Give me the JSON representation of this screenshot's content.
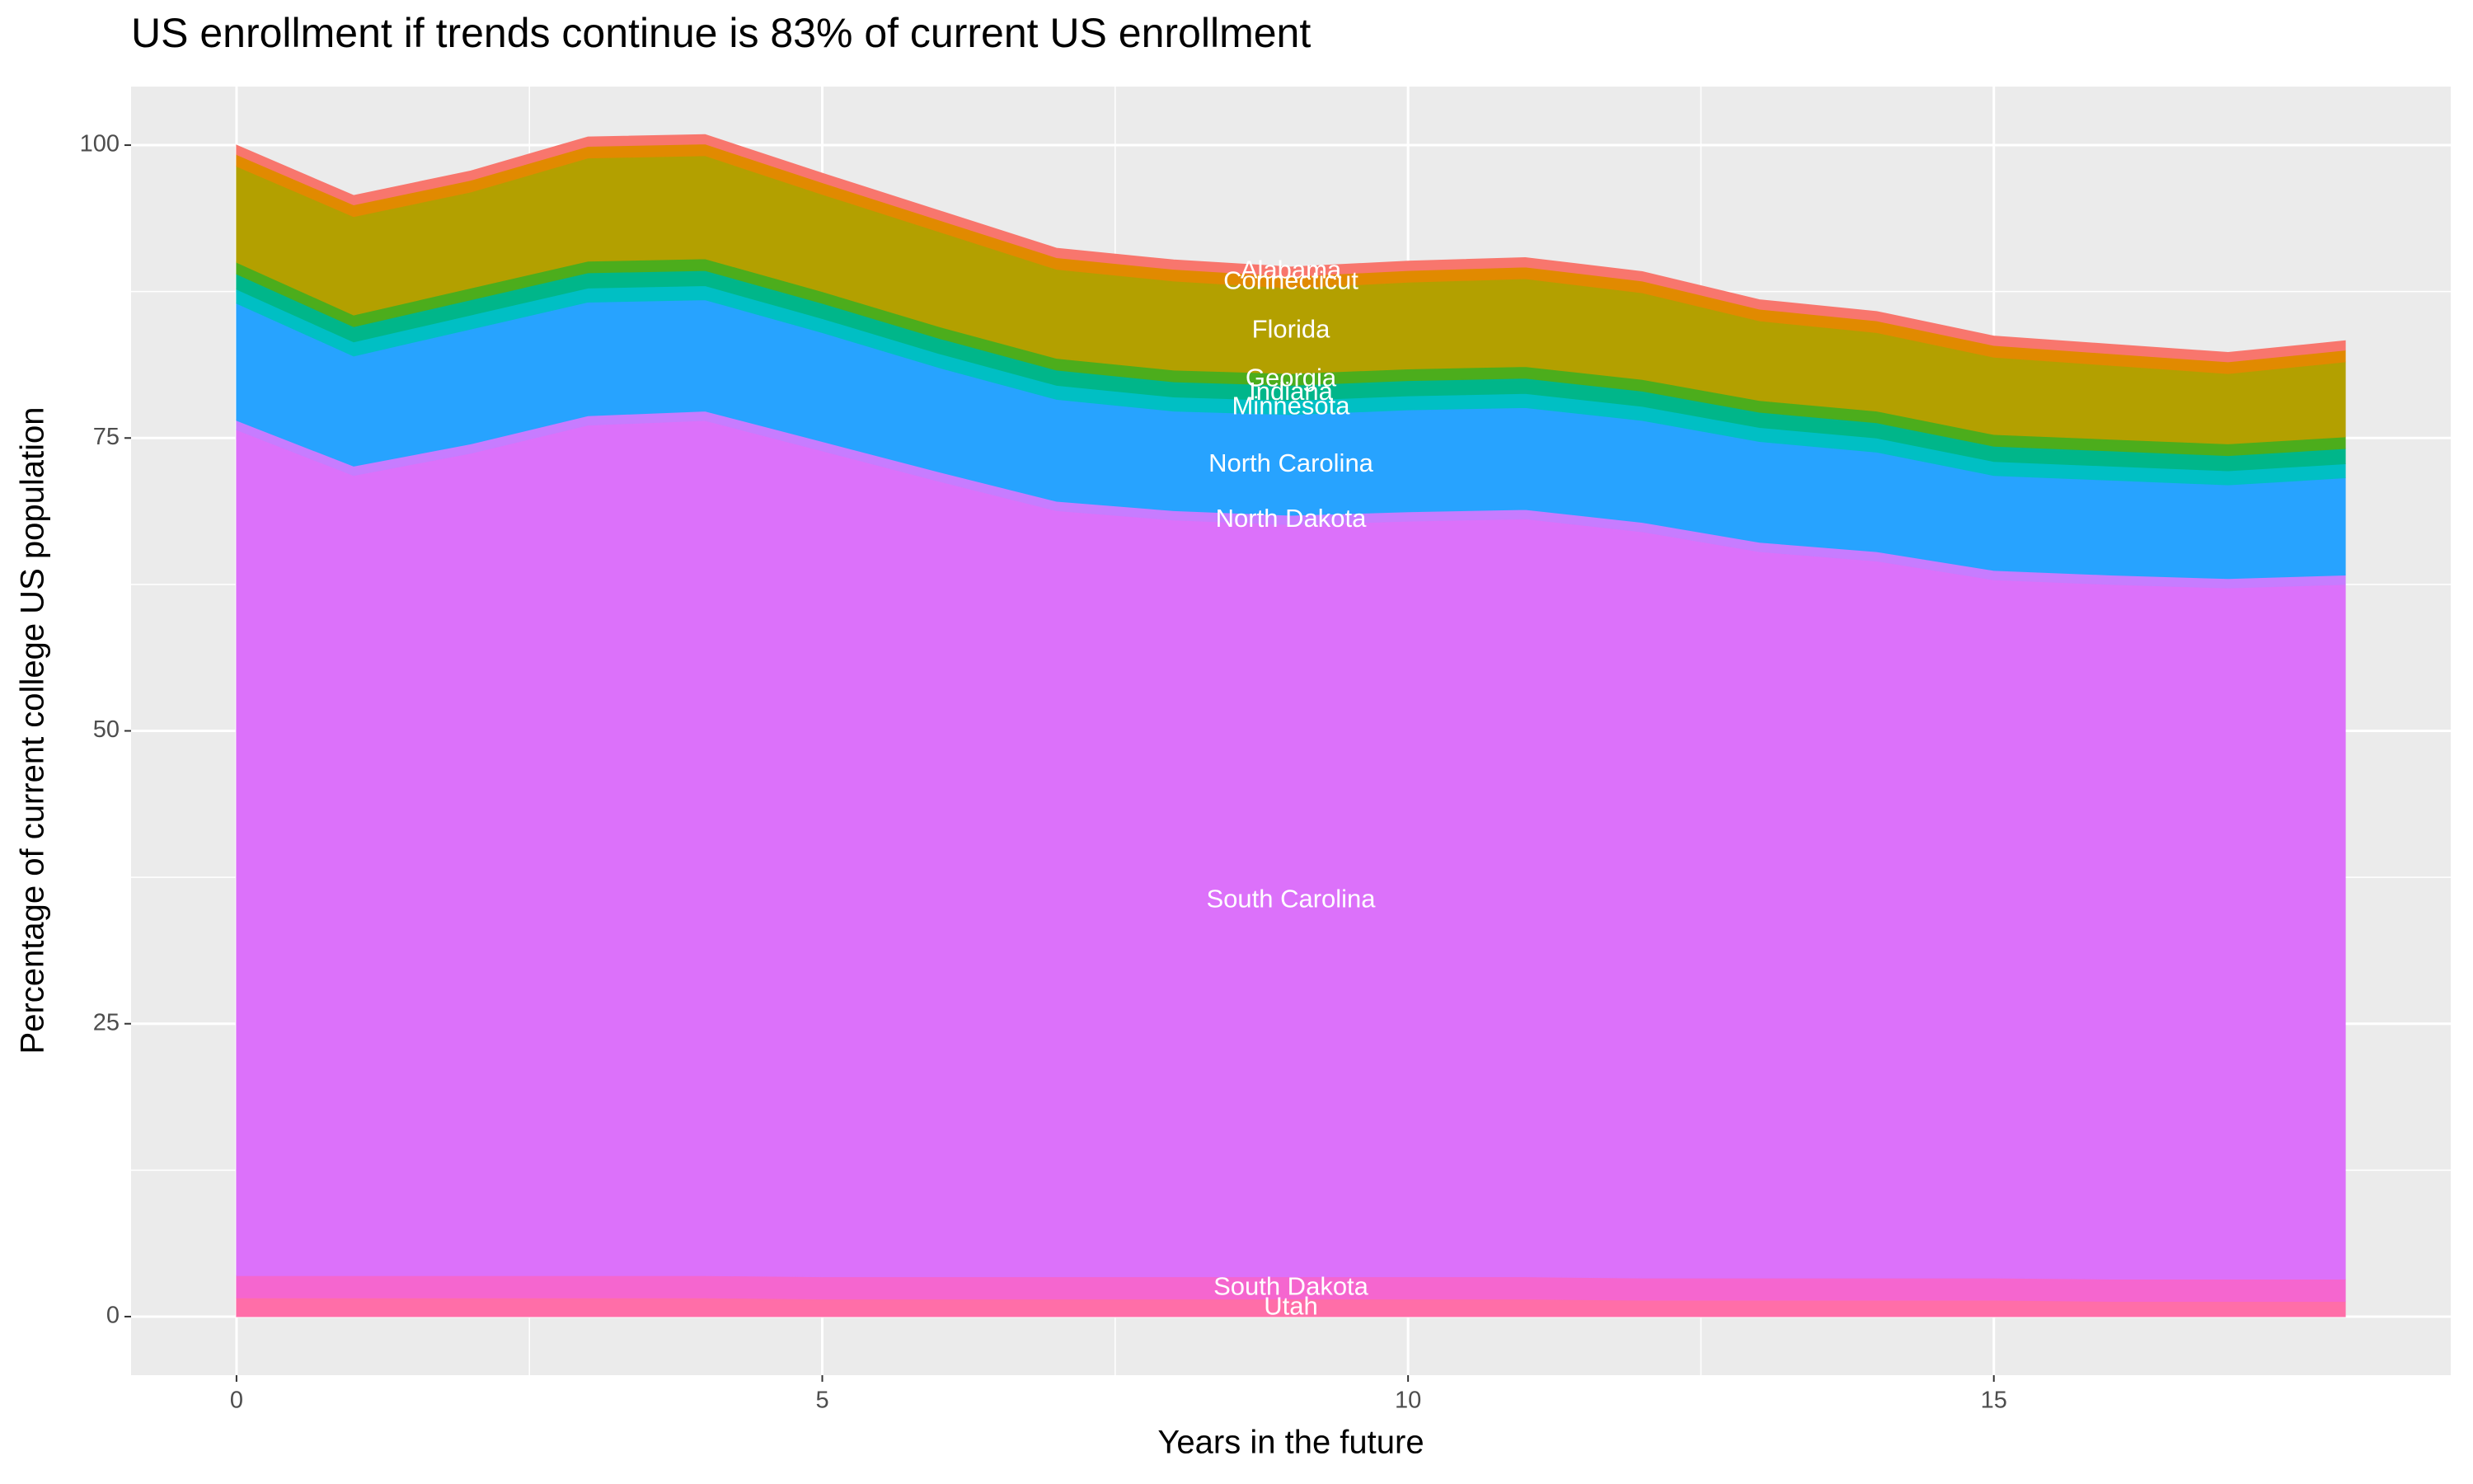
{
  "chart_data": {
    "type": "stacked_area",
    "title": "US enrollment if trends continue is 83% of current US enrollment",
    "x_label": "Years in the future",
    "y_label": "Percentage of current college US population",
    "x": [
      0,
      1,
      2,
      3,
      4,
      5,
      6,
      7,
      8,
      9,
      10,
      11,
      12,
      13,
      14,
      15,
      16,
      17,
      18
    ],
    "xlim": [
      -0.9,
      18.9
    ],
    "xticks": [
      0,
      5,
      10,
      15
    ],
    "ylim": [
      -5,
      105
    ],
    "yticks": [
      0,
      25,
      50,
      75,
      100
    ],
    "grid": true,
    "label_x": 9,
    "series": [
      {
        "name": "Utah",
        "color": "#ff6ea8",
        "values": [
          1.6,
          1.6,
          1.6,
          1.6,
          1.6,
          1.5,
          1.5,
          1.5,
          1.5,
          1.5,
          1.5,
          1.5,
          1.4,
          1.4,
          1.4,
          1.4,
          1.3,
          1.3,
          1.3
        ]
      },
      {
        "name": "South Dakota",
        "color": "#f566cf",
        "values": [
          1.9,
          1.9,
          1.9,
          1.9,
          1.9,
          1.9,
          1.9,
          1.9,
          1.9,
          1.9,
          1.9,
          1.9,
          1.9,
          1.9,
          1.9,
          1.9,
          1.9,
          1.9,
          1.9
        ]
      },
      {
        "name": "South Carolina",
        "color": "#dc71fa",
        "values": [
          72.2,
          68.3,
          70.2,
          72.6,
          73.0,
          70.5,
          67.9,
          65.4,
          64.6,
          64.2,
          64.5,
          64.7,
          63.7,
          62.0,
          61.2,
          59.6,
          59.3,
          59.0,
          59.3
        ]
      },
      {
        "name": "North Dakota",
        "color": "#c77cff",
        "values": [
          0.8,
          0.8,
          0.8,
          0.8,
          0.8,
          0.8,
          0.8,
          0.8,
          0.8,
          0.8,
          0.8,
          0.8,
          0.8,
          0.8,
          0.8,
          0.8,
          0.8,
          0.8,
          0.8
        ]
      },
      {
        "name": "North Carolina",
        "color": "#27a3ff",
        "values": [
          10.0,
          9.4,
          9.8,
          9.7,
          9.5,
          9.3,
          8.9,
          8.7,
          8.5,
          8.6,
          8.7,
          8.7,
          8.7,
          8.6,
          8.5,
          8.1,
          8.1,
          8.0,
          8.3
        ]
      },
      {
        "name": "Minnesota",
        "color": "#00bfc4",
        "values": [
          1.2,
          1.2,
          1.2,
          1.2,
          1.2,
          1.2,
          1.2,
          1.2,
          1.2,
          1.2,
          1.2,
          1.2,
          1.2,
          1.2,
          1.2,
          1.2,
          1.2,
          1.2,
          1.2
        ]
      },
      {
        "name": "Indiana",
        "color": "#00b68a",
        "values": [
          1.3,
          1.3,
          1.3,
          1.3,
          1.3,
          1.3,
          1.3,
          1.3,
          1.3,
          1.3,
          1.3,
          1.3,
          1.3,
          1.3,
          1.3,
          1.3,
          1.3,
          1.3,
          1.3
        ]
      },
      {
        "name": "Georgia",
        "color": "#4cad1c",
        "values": [
          1.0,
          1.0,
          1.0,
          1.0,
          1.0,
          1.0,
          1.0,
          1.0,
          1.0,
          1.0,
          1.0,
          1.0,
          1.0,
          1.0,
          1.0,
          1.0,
          1.0,
          1.0,
          1.0
        ]
      },
      {
        "name": "Florida",
        "color": "#b3a000",
        "values": [
          8.2,
          8.4,
          8.2,
          8.8,
          8.8,
          8.3,
          8.1,
          7.6,
          7.6,
          7.3,
          7.4,
          7.5,
          7.4,
          6.8,
          6.7,
          6.6,
          6.3,
          6.0,
          6.4
        ]
      },
      {
        "name": "Connecticut",
        "color": "#e18a00",
        "values": [
          1.0,
          1.0,
          1.0,
          1.0,
          1.0,
          1.0,
          1.0,
          1.0,
          1.0,
          1.0,
          1.0,
          1.0,
          1.0,
          1.0,
          1.0,
          1.0,
          1.0,
          1.0,
          1.0
        ]
      },
      {
        "name": "Alabama",
        "color": "#f8766d",
        "values": [
          0.8,
          0.8,
          0.8,
          0.8,
          0.8,
          0.8,
          0.8,
          0.8,
          0.8,
          0.8,
          0.8,
          0.8,
          0.8,
          0.8,
          0.8,
          0.8,
          0.8,
          0.8,
          0.8
        ]
      }
    ]
  }
}
